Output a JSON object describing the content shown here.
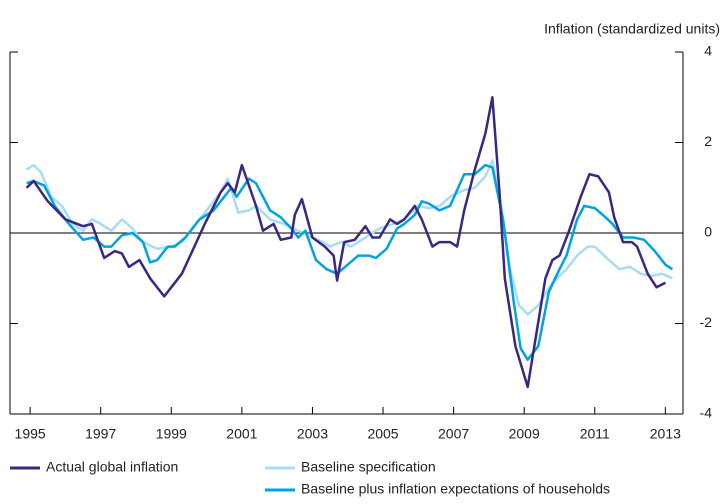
{
  "chart_data": {
    "type": "line",
    "y_label": "Inflation (standardized units)",
    "xlim": [
      1994.43,
      2013.5
    ],
    "xticks": [
      1995,
      1997,
      1999,
      2001,
      2003,
      2005,
      2007,
      2009,
      2011,
      2013
    ],
    "ylim": [
      -4,
      4
    ],
    "yticks": [
      -4,
      -2,
      0,
      2,
      4
    ],
    "legend": "bottom",
    "series": [
      {
        "name": "Actual global inflation",
        "color": "#3a2782",
        "x": [
          1994.9,
          1995.1,
          1995.5,
          1996.0,
          1996.5,
          1996.75,
          1997.1,
          1997.4,
          1997.6,
          1997.8,
          1998.1,
          1998.4,
          1998.8,
          1999.1,
          1999.3,
          1999.95,
          2000.4,
          2000.6,
          2000.8,
          2001.0,
          2001.4,
          2001.6,
          2001.9,
          2002.1,
          2002.4,
          2002.5,
          2002.7,
          2003.0,
          2003.35,
          2003.6,
          2003.7,
          2003.9,
          2004.2,
          2004.5,
          2004.7,
          2004.9,
          2005.2,
          2005.4,
          2005.6,
          2005.9,
          2006.1,
          2006.4,
          2006.6,
          2006.9,
          2007.1,
          2007.3,
          2007.6,
          2007.9,
          2008.1,
          2008.3,
          2008.45,
          2008.75,
          2009.1,
          2009.6,
          2009.8,
          2010.0,
          2010.25,
          2010.6,
          2010.85,
          2011.1,
          2011.4,
          2011.55,
          2011.8,
          2012.05,
          2012.2,
          2012.5,
          2012.75,
          2013.0
        ],
        "values": [
          1.0,
          1.15,
          0.7,
          0.3,
          0.15,
          0.2,
          -0.55,
          -0.4,
          -0.45,
          -0.75,
          -0.6,
          -1.0,
          -1.4,
          -1.1,
          -0.9,
          0.2,
          0.9,
          1.1,
          0.9,
          1.5,
          0.6,
          0.05,
          0.2,
          -0.15,
          -0.1,
          0.4,
          0.75,
          -0.1,
          -0.3,
          -0.5,
          -1.05,
          -0.2,
          -0.15,
          0.15,
          -0.1,
          -0.1,
          0.3,
          0.2,
          0.3,
          0.6,
          0.3,
          -0.3,
          -0.2,
          -0.2,
          -0.3,
          0.5,
          1.4,
          2.2,
          3.0,
          0.9,
          -1.0,
          -2.5,
          -3.4,
          -1.0,
          -0.6,
          -0.5,
          0.0,
          0.8,
          1.3,
          1.25,
          0.9,
          0.35,
          -0.2,
          -0.2,
          -0.3,
          -0.9,
          -1.2,
          -1.1
        ]
      },
      {
        "name": "Baseline specification",
        "color": "#a6dcf5",
        "x": [
          1994.9,
          1995.1,
          1995.3,
          1995.6,
          1995.9,
          1996.2,
          1996.5,
          1996.75,
          1997.0,
          1997.3,
          1997.6,
          1997.9,
          1998.2,
          1998.6,
          1999.0,
          1999.3,
          1999.7,
          2000.1,
          2000.4,
          2000.6,
          2000.9,
          2001.2,
          2001.4,
          2001.8,
          2002.2,
          2002.6,
          2003.0,
          2003.3,
          2003.5,
          2003.8,
          2004.1,
          2004.5,
          2004.9,
          2005.3,
          2005.6,
          2006.0,
          2006.3,
          2006.6,
          2006.9,
          2007.3,
          2007.6,
          2007.9,
          2008.1,
          2008.35,
          2008.6,
          2008.85,
          2009.1,
          2009.4,
          2009.8,
          2010.2,
          2010.5,
          2010.8,
          2011.0,
          2011.4,
          2011.7,
          2012.0,
          2012.3,
          2012.6,
          2012.9,
          2013.2
        ],
        "values": [
          1.4,
          1.5,
          1.35,
          0.8,
          0.6,
          0.2,
          0.05,
          0.3,
          0.2,
          0.05,
          0.3,
          0.1,
          -0.2,
          -0.35,
          -0.3,
          -0.2,
          0.2,
          0.6,
          0.9,
          1.2,
          0.45,
          0.5,
          0.6,
          0.3,
          0.2,
          0.05,
          -0.1,
          -0.2,
          -0.3,
          -0.2,
          -0.3,
          -0.1,
          0.1,
          0.2,
          0.3,
          0.6,
          0.55,
          0.6,
          0.8,
          0.95,
          1.0,
          1.25,
          1.6,
          0.6,
          -0.8,
          -1.6,
          -1.8,
          -1.6,
          -1.1,
          -0.8,
          -0.5,
          -0.3,
          -0.3,
          -0.6,
          -0.8,
          -0.75,
          -0.9,
          -0.95,
          -0.9,
          -1.0
        ]
      },
      {
        "name": "Baseline plus inflation expectations of households",
        "color": "#00a3e0",
        "x": [
          1994.9,
          1995.1,
          1995.4,
          1995.7,
          1996.1,
          1996.5,
          1996.8,
          1997.1,
          1997.3,
          1997.6,
          1997.9,
          1998.2,
          1998.4,
          1998.6,
          1998.9,
          1999.1,
          1999.4,
          1999.8,
          2000.2,
          2000.4,
          2000.7,
          2000.85,
          2001.2,
          2001.4,
          2001.8,
          2002.1,
          2002.4,
          2002.6,
          2002.8,
          2003.1,
          2003.4,
          2003.7,
          2004.0,
          2004.3,
          2004.6,
          2004.8,
          2005.1,
          2005.4,
          2005.6,
          2005.9,
          2006.1,
          2006.3,
          2006.6,
          2006.9,
          2007.3,
          2007.6,
          2007.9,
          2008.1,
          2008.4,
          2008.7,
          2008.9,
          2009.1,
          2009.4,
          2009.7,
          2010.0,
          2010.2,
          2010.5,
          2010.7,
          2011.0,
          2011.3,
          2011.5,
          2011.8,
          2012.1,
          2012.4,
          2012.7,
          2013.0,
          2013.2
        ],
        "values": [
          1.1,
          1.15,
          1.05,
          0.6,
          0.2,
          -0.15,
          -0.1,
          -0.3,
          -0.3,
          -0.05,
          0.0,
          -0.2,
          -0.65,
          -0.6,
          -0.3,
          -0.3,
          -0.1,
          0.3,
          0.5,
          0.7,
          1.0,
          0.8,
          1.2,
          1.1,
          0.5,
          0.35,
          0.1,
          -0.1,
          0.05,
          -0.6,
          -0.8,
          -0.9,
          -0.7,
          -0.5,
          -0.5,
          -0.55,
          -0.35,
          0.1,
          0.2,
          0.4,
          0.7,
          0.65,
          0.5,
          0.6,
          1.3,
          1.3,
          1.5,
          1.45,
          0.3,
          -1.5,
          -2.55,
          -2.8,
          -2.5,
          -1.3,
          -0.8,
          -0.5,
          0.3,
          0.6,
          0.55,
          0.35,
          0.2,
          -0.1,
          -0.1,
          -0.15,
          -0.4,
          -0.7,
          -0.8
        ]
      }
    ]
  }
}
